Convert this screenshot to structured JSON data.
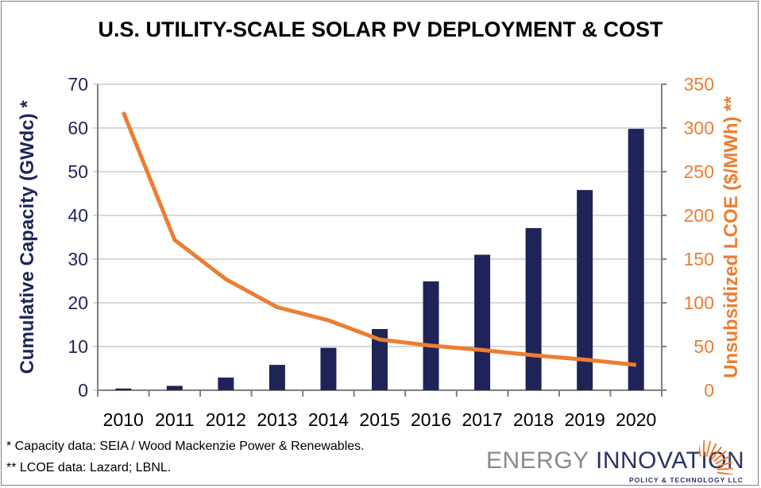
{
  "chart_data": {
    "type": "bar+line",
    "title": "U.S. UTILITY-SCALE SOLAR PV DEPLOYMENT  & COST",
    "categories": [
      "2010",
      "2011",
      "2012",
      "2013",
      "2014",
      "2015",
      "2016",
      "2017",
      "2018",
      "2019",
      "2020"
    ],
    "series": [
      {
        "type": "bar",
        "axis": "left",
        "color": "#1f2458",
        "values": [
          0.4,
          1.0,
          2.9,
          5.8,
          9.7,
          14.0,
          24.9,
          31.0,
          37.1,
          45.8,
          59.8
        ]
      },
      {
        "type": "line",
        "axis": "right",
        "color": "#ed7d31",
        "values": [
          318,
          172,
          127,
          95,
          80,
          58,
          51,
          46,
          40,
          35,
          29
        ]
      }
    ],
    "ylabel": "Cumulative Capacity (GWdc) *",
    "y2label": "Unsubsidized LCOE ($/MWh) **",
    "ylim": [
      0,
      70
    ],
    "y2lim": [
      0,
      350
    ],
    "yticks": [
      "0",
      "10",
      "20",
      "30",
      "40",
      "50",
      "60",
      "70"
    ],
    "y2ticks": [
      "0",
      "50",
      "100",
      "150",
      "200",
      "250",
      "300",
      "350"
    ],
    "grid": true,
    "left_axis_color": "#1f2458",
    "right_axis_color": "#ed7d31"
  },
  "notes": [
    "* Capacity data: SEIA / Wood Mackenzie Power & Renewables.",
    "** LCOE data: Lazard; LBNL."
  ],
  "logo": {
    "part1": "ENERGY ",
    "part2": "INNOVATION",
    "sub": "POLICY & TECHNOLOGY LLC"
  }
}
